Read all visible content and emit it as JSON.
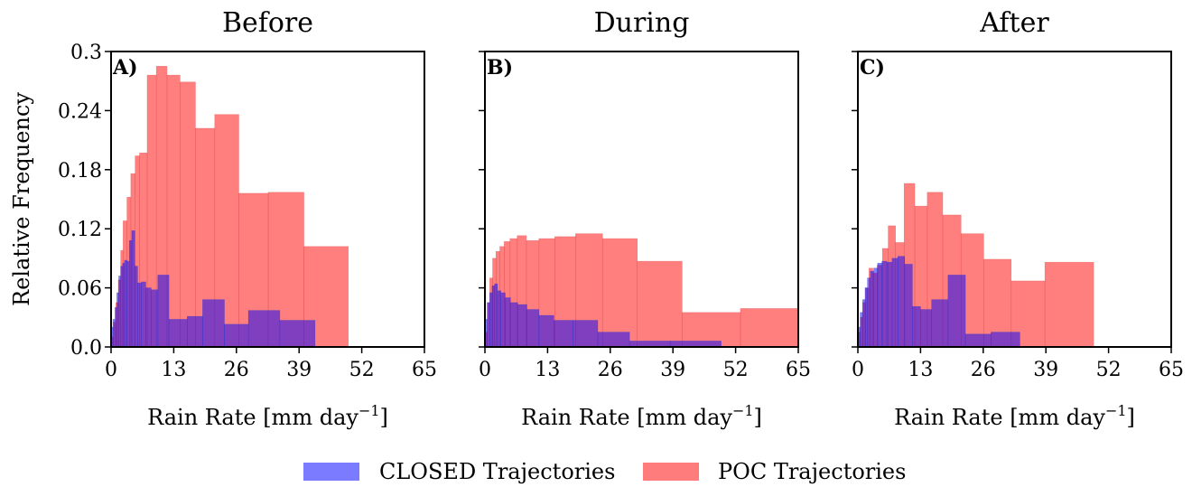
{
  "chart_data": [
    {
      "type": "bar",
      "panel": "A)",
      "title": "Before",
      "xlabel": "Rain Rate [mm day",
      "xlabel_sup": "−1",
      "xlabel_end": "]",
      "ylabel": "Relative Frequency",
      "xlim": [
        0,
        65
      ],
      "ylim": [
        0,
        0.3
      ],
      "xticks": [
        "0",
        "13",
        "26",
        "39",
        "52",
        "65"
      ],
      "yticks": [
        "0.0",
        "0.06",
        "0.12",
        "0.18",
        "0.24",
        "0.3"
      ],
      "series": [
        {
          "name": "POC Trajectories",
          "bins": [
            {
              "x0": 0.0,
              "x1": 0.5,
              "y": 0.01
            },
            {
              "x0": 0.5,
              "x1": 1.0,
              "y": 0.025
            },
            {
              "x0": 1.0,
              "x1": 1.5,
              "y": 0.045
            },
            {
              "x0": 1.5,
              "x1": 2.0,
              "y": 0.068
            },
            {
              "x0": 2.0,
              "x1": 2.5,
              "y": 0.098
            },
            {
              "x0": 2.5,
              "x1": 3.3,
              "y": 0.128
            },
            {
              "x0": 3.3,
              "x1": 4.1,
              "y": 0.152
            },
            {
              "x0": 4.1,
              "x1": 5.0,
              "y": 0.176
            },
            {
              "x0": 5.0,
              "x1": 5.9,
              "y": 0.194
            },
            {
              "x0": 5.9,
              "x1": 7.5,
              "y": 0.197
            },
            {
              "x0": 7.5,
              "x1": 9.4,
              "y": 0.276
            },
            {
              "x0": 9.4,
              "x1": 11.6,
              "y": 0.285
            },
            {
              "x0": 11.6,
              "x1": 14.3,
              "y": 0.276
            },
            {
              "x0": 14.3,
              "x1": 17.5,
              "y": 0.269
            },
            {
              "x0": 17.5,
              "x1": 21.5,
              "y": 0.222
            },
            {
              "x0": 21.5,
              "x1": 26.5,
              "y": 0.236
            },
            {
              "x0": 26.5,
              "x1": 32.6,
              "y": 0.156
            },
            {
              "x0": 32.6,
              "x1": 40.0,
              "y": 0.157
            },
            {
              "x0": 40.0,
              "x1": 49.2,
              "y": 0.102
            }
          ]
        },
        {
          "name": "CLOSED Trajectories",
          "bins": [
            {
              "x0": 0.0,
              "x1": 0.4,
              "y": 0.02
            },
            {
              "x0": 0.4,
              "x1": 0.8,
              "y": 0.028
            },
            {
              "x0": 0.8,
              "x1": 1.2,
              "y": 0.04
            },
            {
              "x0": 1.2,
              "x1": 1.6,
              "y": 0.055
            },
            {
              "x0": 1.6,
              "x1": 2.0,
              "y": 0.072
            },
            {
              "x0": 2.0,
              "x1": 2.4,
              "y": 0.082
            },
            {
              "x0": 2.4,
              "x1": 2.8,
              "y": 0.085
            },
            {
              "x0": 2.8,
              "x1": 3.3,
              "y": 0.088
            },
            {
              "x0": 3.3,
              "x1": 3.8,
              "y": 0.087
            },
            {
              "x0": 3.8,
              "x1": 4.3,
              "y": 0.108
            },
            {
              "x0": 4.3,
              "x1": 4.9,
              "y": 0.118
            },
            {
              "x0": 4.9,
              "x1": 5.5,
              "y": 0.082
            },
            {
              "x0": 5.5,
              "x1": 6.3,
              "y": 0.065
            },
            {
              "x0": 6.3,
              "x1": 7.2,
              "y": 0.066
            },
            {
              "x0": 7.2,
              "x1": 8.3,
              "y": 0.06
            },
            {
              "x0": 8.3,
              "x1": 9.7,
              "y": 0.058
            },
            {
              "x0": 9.7,
              "x1": 12.0,
              "y": 0.073
            },
            {
              "x0": 12.0,
              "x1": 15.8,
              "y": 0.028
            },
            {
              "x0": 15.8,
              "x1": 19.0,
              "y": 0.031
            },
            {
              "x0": 19.0,
              "x1": 23.5,
              "y": 0.048
            },
            {
              "x0": 23.5,
              "x1": 28.5,
              "y": 0.023
            },
            {
              "x0": 28.5,
              "x1": 35.0,
              "y": 0.037
            },
            {
              "x0": 35.0,
              "x1": 42.3,
              "y": 0.027
            }
          ]
        }
      ]
    },
    {
      "type": "bar",
      "panel": "B)",
      "title": "During",
      "xlabel": "Rain Rate [mm day",
      "xlabel_sup": "−1",
      "xlabel_end": "]",
      "ylabel": "",
      "xlim": [
        0,
        65
      ],
      "ylim": [
        0,
        0.3
      ],
      "xticks": [
        "0",
        "13",
        "26",
        "39",
        "52",
        "65"
      ],
      "yticks": [],
      "series": [
        {
          "name": "POC Trajectories",
          "bins": [
            {
              "x0": 0.0,
              "x1": 0.5,
              "y": 0.015
            },
            {
              "x0": 0.5,
              "x1": 1.0,
              "y": 0.045
            },
            {
              "x0": 1.0,
              "x1": 1.6,
              "y": 0.07
            },
            {
              "x0": 1.6,
              "x1": 2.3,
              "y": 0.09
            },
            {
              "x0": 2.3,
              "x1": 3.1,
              "y": 0.097
            },
            {
              "x0": 3.1,
              "x1": 4.0,
              "y": 0.102
            },
            {
              "x0": 4.0,
              "x1": 5.2,
              "y": 0.107
            },
            {
              "x0": 5.2,
              "x1": 6.7,
              "y": 0.11
            },
            {
              "x0": 6.7,
              "x1": 8.6,
              "y": 0.113
            },
            {
              "x0": 8.6,
              "x1": 11.2,
              "y": 0.108
            },
            {
              "x0": 11.2,
              "x1": 14.5,
              "y": 0.11
            },
            {
              "x0": 14.5,
              "x1": 18.8,
              "y": 0.112
            },
            {
              "x0": 18.8,
              "x1": 24.4,
              "y": 0.115
            },
            {
              "x0": 24.4,
              "x1": 31.6,
              "y": 0.11
            },
            {
              "x0": 31.6,
              "x1": 40.9,
              "y": 0.087
            },
            {
              "x0": 40.9,
              "x1": 53.0,
              "y": 0.035
            },
            {
              "x0": 53.0,
              "x1": 65.0,
              "y": 0.039
            }
          ]
        },
        {
          "name": "CLOSED Trajectories",
          "bins": [
            {
              "x0": 0.0,
              "x1": 0.5,
              "y": 0.028
            },
            {
              "x0": 0.5,
              "x1": 1.0,
              "y": 0.045
            },
            {
              "x0": 1.0,
              "x1": 1.5,
              "y": 0.055
            },
            {
              "x0": 1.5,
              "x1": 2.0,
              "y": 0.062
            },
            {
              "x0": 2.0,
              "x1": 2.6,
              "y": 0.064
            },
            {
              "x0": 2.6,
              "x1": 3.3,
              "y": 0.057
            },
            {
              "x0": 3.3,
              "x1": 4.2,
              "y": 0.055
            },
            {
              "x0": 4.2,
              "x1": 5.3,
              "y": 0.05
            },
            {
              "x0": 5.3,
              "x1": 6.8,
              "y": 0.045
            },
            {
              "x0": 6.8,
              "x1": 8.7,
              "y": 0.043
            },
            {
              "x0": 8.7,
              "x1": 11.2,
              "y": 0.038
            },
            {
              "x0": 11.2,
              "x1": 14.3,
              "y": 0.032
            },
            {
              "x0": 14.3,
              "x1": 18.3,
              "y": 0.027
            },
            {
              "x0": 18.3,
              "x1": 23.4,
              "y": 0.027
            },
            {
              "x0": 23.4,
              "x1": 30.0,
              "y": 0.015
            },
            {
              "x0": 30.0,
              "x1": 38.4,
              "y": 0.006
            },
            {
              "x0": 38.4,
              "x1": 49.0,
              "y": 0.006
            }
          ]
        }
      ]
    },
    {
      "type": "bar",
      "panel": "C)",
      "title": "After",
      "xlabel": "Rain Rate [mm day",
      "xlabel_sup": "−1",
      "xlabel_end": "]",
      "ylabel": "",
      "xlim": [
        0,
        65
      ],
      "ylim": [
        0,
        0.3
      ],
      "xticks": [
        "0",
        "13",
        "26",
        "39",
        "52",
        "65"
      ],
      "yticks": [],
      "series": [
        {
          "name": "POC Trajectories",
          "bins": [
            {
              "x0": 0.0,
              "x1": 0.5,
              "y": 0.015
            },
            {
              "x0": 0.5,
              "x1": 1.0,
              "y": 0.03
            },
            {
              "x0": 1.0,
              "x1": 1.6,
              "y": 0.045
            },
            {
              "x0": 1.6,
              "x1": 2.3,
              "y": 0.06
            },
            {
              "x0": 2.3,
              "x1": 3.1,
              "y": 0.08
            },
            {
              "x0": 3.1,
              "x1": 4.0,
              "y": 0.075
            },
            {
              "x0": 4.0,
              "x1": 5.1,
              "y": 0.083
            },
            {
              "x0": 5.1,
              "x1": 6.3,
              "y": 0.1
            },
            {
              "x0": 6.3,
              "x1": 7.8,
              "y": 0.123
            },
            {
              "x0": 7.8,
              "x1": 9.6,
              "y": 0.106
            },
            {
              "x0": 9.6,
              "x1": 11.8,
              "y": 0.166
            },
            {
              "x0": 11.8,
              "x1": 14.4,
              "y": 0.143
            },
            {
              "x0": 14.4,
              "x1": 17.6,
              "y": 0.157
            },
            {
              "x0": 17.6,
              "x1": 21.4,
              "y": 0.134
            },
            {
              "x0": 21.4,
              "x1": 26.1,
              "y": 0.115
            },
            {
              "x0": 26.1,
              "x1": 31.8,
              "y": 0.089
            },
            {
              "x0": 31.8,
              "x1": 38.8,
              "y": 0.067
            },
            {
              "x0": 38.8,
              "x1": 48.9,
              "y": 0.086
            }
          ]
        },
        {
          "name": "CLOSED Trajectories",
          "bins": [
            {
              "x0": 0.0,
              "x1": 0.5,
              "y": 0.02
            },
            {
              "x0": 0.5,
              "x1": 1.0,
              "y": 0.035
            },
            {
              "x0": 1.0,
              "x1": 1.5,
              "y": 0.048
            },
            {
              "x0": 1.5,
              "x1": 2.0,
              "y": 0.06
            },
            {
              "x0": 2.0,
              "x1": 2.6,
              "y": 0.07
            },
            {
              "x0": 2.6,
              "x1": 3.3,
              "y": 0.077
            },
            {
              "x0": 3.3,
              "x1": 4.1,
              "y": 0.08
            },
            {
              "x0": 4.1,
              "x1": 5.0,
              "y": 0.085
            },
            {
              "x0": 5.0,
              "x1": 6.0,
              "y": 0.087
            },
            {
              "x0": 6.0,
              "x1": 7.1,
              "y": 0.086
            },
            {
              "x0": 7.1,
              "x1": 8.3,
              "y": 0.09
            },
            {
              "x0": 8.3,
              "x1": 9.7,
              "y": 0.092
            },
            {
              "x0": 9.7,
              "x1": 11.3,
              "y": 0.084
            },
            {
              "x0": 11.3,
              "x1": 13.0,
              "y": 0.041
            },
            {
              "x0": 13.0,
              "x1": 15.3,
              "y": 0.038
            },
            {
              "x0": 15.3,
              "x1": 18.7,
              "y": 0.048
            },
            {
              "x0": 18.7,
              "x1": 22.3,
              "y": 0.073
            },
            {
              "x0": 22.3,
              "x1": 27.6,
              "y": 0.013
            },
            {
              "x0": 27.6,
              "x1": 33.6,
              "y": 0.015
            }
          ]
        }
      ]
    }
  ],
  "legend": {
    "placement": "bottom-center",
    "items": [
      {
        "label": "CLOSED Trajectories",
        "color": "#7b7bff"
      },
      {
        "label": "POC Trajectories",
        "color": "#ff7c7c"
      }
    ]
  },
  "colors": {
    "CLOSED Trajectories": "#0000ff",
    "POC Trajectories": "#ff0000",
    "bar_opacity": 0.5
  }
}
